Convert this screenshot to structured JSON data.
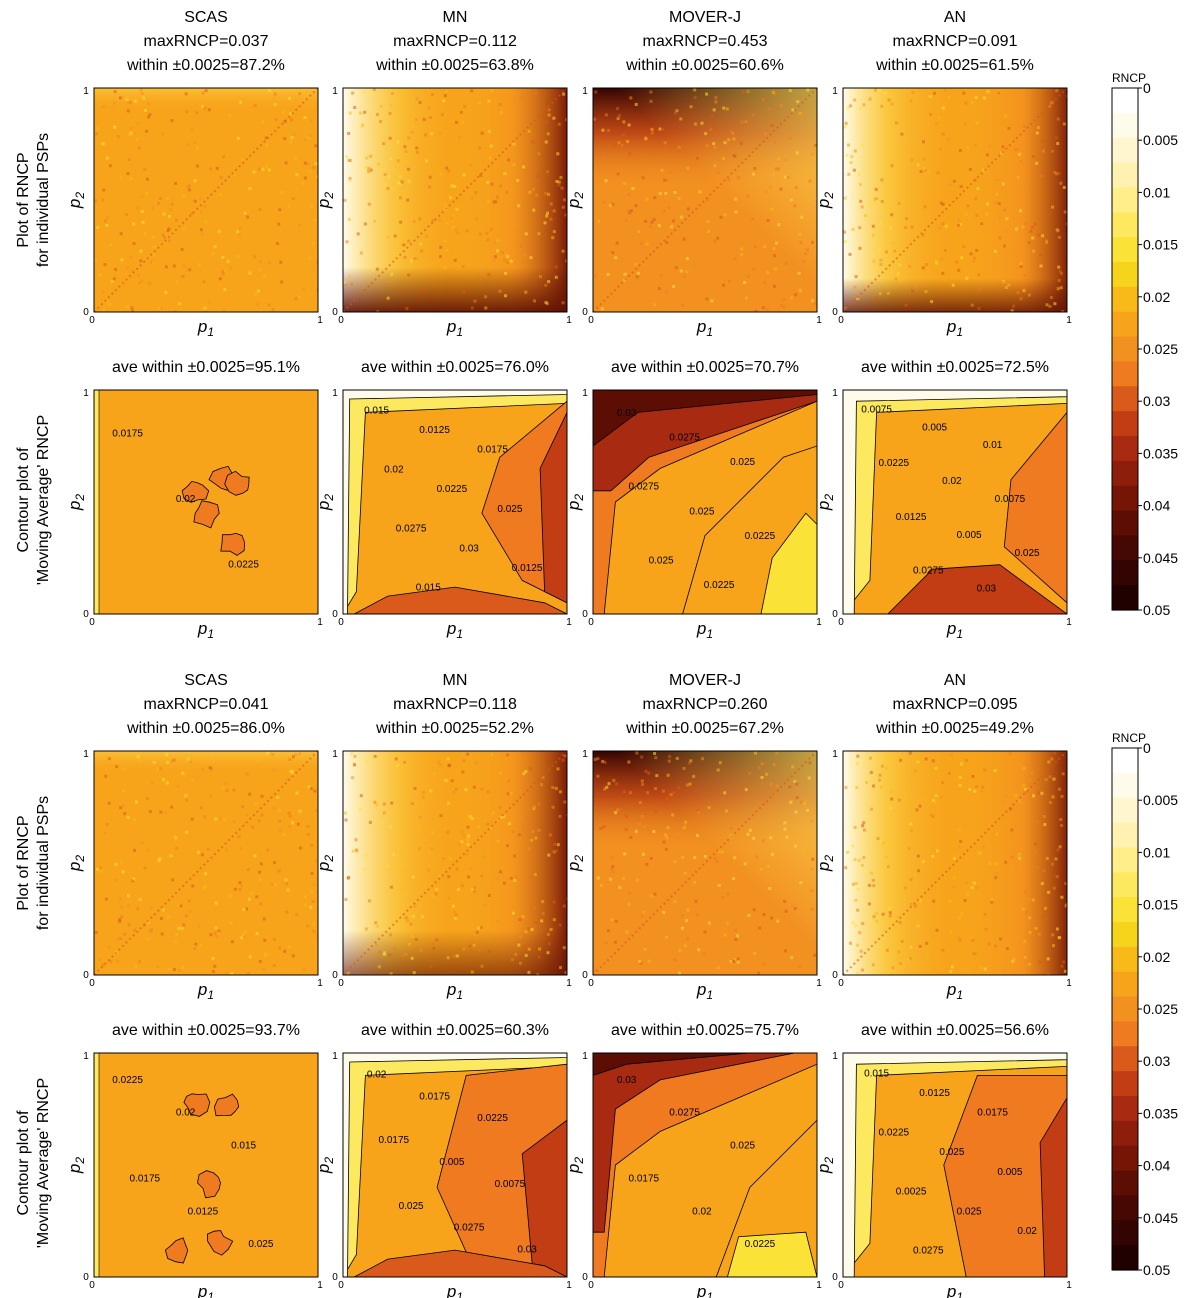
{
  "panel_label_rncp": "RNCP",
  "panel_label_ma": "Contour plot of 'Moving Average' RNCP",
  "axis": {
    "x_var": "p",
    "x_sub": "1",
    "y_var": "p",
    "y_sub": "2",
    "tick_0": "0",
    "tick_1": "1"
  },
  "colorbar": {
    "title": "RNCP",
    "ticks": [
      "0",
      "0.005",
      "0.01",
      "0.015",
      "0.02",
      "0.025",
      "0.03",
      "0.035",
      "0.04",
      "0.045",
      "0.05"
    ],
    "colors": [
      "#ffffff",
      "#fffbea",
      "#fff6cf",
      "#fff2b0",
      "#ffee8a",
      "#fde95f",
      "#fae237",
      "#f7d41c",
      "#f7ba18",
      "#f7a41b",
      "#f29020",
      "#ef7a20",
      "#d95a1a",
      "#c23d14",
      "#a82a10",
      "#8e1e0b",
      "#741506",
      "#5c0e04",
      "#460802",
      "#330401",
      "#200100"
    ]
  },
  "blocks": [
    {
      "methods": [
        {
          "name": "SCAS",
          "max_rncp": "maxRNCP=0.037",
          "within": "within ±0.0025=87.2%",
          "ave_within": "ave within ±0.0025=95.1%",
          "contour_labels": [
            "0.0175",
            "0.02",
            "0.0225"
          ]
        },
        {
          "name": "MN",
          "max_rncp": "maxRNCP=0.112",
          "within": "within ±0.0025=63.8%",
          "ave_within": "ave within ±0.0025=76.0%",
          "contour_labels": [
            "0.015",
            "0.0125",
            "0.0175",
            "0.02",
            "0.0225",
            "0.025",
            "0.0275",
            "0.03",
            "0.0125",
            "0.015"
          ]
        },
        {
          "name": "MOVER-J",
          "max_rncp": "maxRNCP=0.453",
          "within": "within ±0.0025=60.6%",
          "ave_within": "ave within ±0.0025=70.7%",
          "contour_labels": [
            "0.03",
            "0.0275",
            "0.025",
            "0.0275",
            "0.025",
            "0.0225",
            "0.025",
            "0.0225"
          ]
        },
        {
          "name": "AN",
          "max_rncp": "maxRNCP=0.091",
          "within": "within ±0.0025=61.5%",
          "ave_within": "ave within ±0.0025=72.5%",
          "contour_labels": [
            "0.0075",
            "0.005",
            "0.01",
            "0.0225",
            "0.02",
            "0.0075",
            "0.0125",
            "0.005",
            "0.025",
            "0.0275",
            "0.03"
          ]
        }
      ]
    },
    {
      "methods": [
        {
          "name": "SCAS",
          "max_rncp": "maxRNCP=0.041",
          "within": "within ±0.0025=86.0%",
          "ave_within": "ave within ±0.0025=93.7%",
          "contour_labels": [
            "0.0225",
            "0.02",
            "0.015",
            "0.0175",
            "0.0125",
            "0.025"
          ]
        },
        {
          "name": "MN",
          "max_rncp": "maxRNCP=0.118",
          "within": "within ±0.0025=52.2%",
          "ave_within": "ave within ±0.0025=60.3%",
          "contour_labels": [
            "0.02",
            "0.0175",
            "0.0225",
            "0.0175",
            "0.005",
            "0.0075",
            "0.025",
            "0.0275",
            "0.03"
          ]
        },
        {
          "name": "MOVER-J",
          "max_rncp": "maxRNCP=0.260",
          "within": "within ±0.0025=67.2%",
          "ave_within": "ave within ±0.0025=75.7%",
          "contour_labels": [
            "0.03",
            "0.0275",
            "0.025",
            "0.0175",
            "0.02",
            "0.0225"
          ]
        },
        {
          "name": "AN",
          "max_rncp": "maxRNCP=0.095",
          "within": "within ±0.0025=49.2%",
          "ave_within": "ave within ±0.0025=56.6%",
          "contour_labels": [
            "0.015",
            "0.0125",
            "0.0175",
            "0.0225",
            "0.025",
            "0.005",
            "0.0025",
            "0.025",
            "0.02",
            "0.0275"
          ]
        }
      ]
    }
  ],
  "chart_data": {
    "type": "heatmap",
    "description_free": true,
    "x_range": [
      0,
      1
    ],
    "y_range": [
      0,
      1
    ],
    "colorscale_range": [
      0,
      0.05
    ],
    "panels": [
      {
        "block": 1,
        "method": "SCAS",
        "maxRNCP": 0.037,
        "within_0.0025_pct": 87.2,
        "ave_within_0.0025_pct": 95.1
      },
      {
        "block": 1,
        "method": "MN",
        "maxRNCP": 0.112,
        "within_0.0025_pct": 63.8,
        "ave_within_0.0025_pct": 76.0
      },
      {
        "block": 1,
        "method": "MOVER-J",
        "maxRNCP": 0.453,
        "within_0.0025_pct": 60.6,
        "ave_within_0.0025_pct": 70.7
      },
      {
        "block": 1,
        "method": "AN",
        "maxRNCP": 0.091,
        "within_0.0025_pct": 61.5,
        "ave_within_0.0025_pct": 72.5
      },
      {
        "block": 2,
        "method": "SCAS",
        "maxRNCP": 0.041,
        "within_0.0025_pct": 86.0,
        "ave_within_0.0025_pct": 93.7
      },
      {
        "block": 2,
        "method": "MN",
        "maxRNCP": 0.118,
        "within_0.0025_pct": 52.2,
        "ave_within_0.0025_pct": 60.3
      },
      {
        "block": 2,
        "method": "MOVER-J",
        "maxRNCP": 0.26,
        "within_0.0025_pct": 67.2,
        "ave_within_0.0025_pct": 75.7
      },
      {
        "block": 2,
        "method": "AN",
        "maxRNCP": 0.095,
        "within_0.0025_pct": 49.2,
        "ave_within_0.0025_pct": 56.6
      }
    ]
  }
}
